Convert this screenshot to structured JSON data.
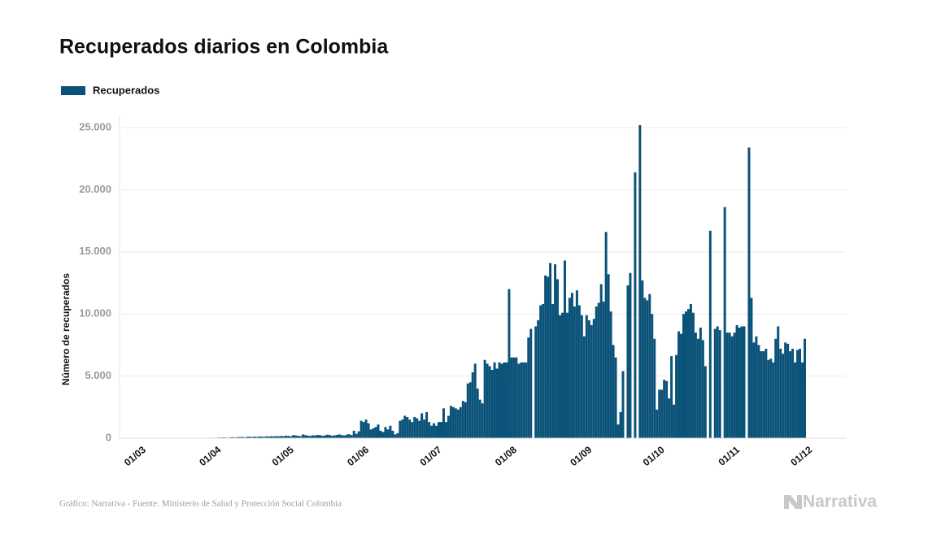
{
  "chart_data": {
    "type": "bar",
    "title": "Recuperados diarios en Colombia",
    "y_label": "Número de recuperados",
    "source": "Gráfico: Narrativa - Fuente: Ministerio de Salud y Protección Social Colombia",
    "brand": "Narrativa",
    "legend_position": "top-left",
    "grid": true,
    "ylim": [
      0,
      26000
    ],
    "yticks": [
      0,
      {
        "value": 5000,
        "label": "5.000"
      },
      {
        "value": 10000,
        "label": "10.000"
      },
      {
        "value": 15000,
        "label": "15.000"
      },
      {
        "value": 20000,
        "label": "20.000"
      },
      {
        "value": 25000,
        "label": "25.000"
      }
    ],
    "categories": [
      "01/03",
      null,
      null,
      null,
      null,
      null,
      null,
      null,
      null,
      null,
      null,
      null,
      null,
      null,
      null,
      null,
      null,
      null,
      null,
      null,
      null,
      null,
      null,
      null,
      null,
      null,
      null,
      null,
      null,
      null,
      null,
      "01/04",
      null,
      null,
      null,
      null,
      null,
      null,
      null,
      null,
      null,
      null,
      null,
      null,
      null,
      null,
      null,
      null,
      null,
      null,
      null,
      null,
      null,
      null,
      null,
      null,
      null,
      null,
      null,
      null,
      null,
      "01/05",
      null,
      null,
      null,
      null,
      null,
      null,
      null,
      null,
      null,
      null,
      null,
      null,
      null,
      null,
      null,
      null,
      null,
      null,
      null,
      null,
      null,
      null,
      null,
      null,
      null,
      null,
      null,
      null,
      null,
      null,
      "01/06",
      null,
      null,
      null,
      null,
      null,
      null,
      null,
      null,
      null,
      null,
      null,
      null,
      null,
      null,
      null,
      null,
      null,
      null,
      null,
      null,
      null,
      null,
      null,
      null,
      null,
      null,
      null,
      null,
      null,
      "01/07",
      null,
      null,
      null,
      null,
      null,
      null,
      null,
      null,
      null,
      null,
      null,
      null,
      null,
      null,
      null,
      null,
      null,
      null,
      null,
      null,
      null,
      null,
      null,
      null,
      null,
      null,
      null,
      null,
      null,
      null,
      "01/08",
      null,
      null,
      null,
      null,
      null,
      null,
      null,
      null,
      null,
      null,
      null,
      null,
      null,
      null,
      null,
      null,
      null,
      null,
      null,
      null,
      null,
      null,
      null,
      null,
      null,
      null,
      null,
      null,
      null,
      null,
      "01/09",
      null,
      null,
      null,
      null,
      null,
      null,
      null,
      null,
      null,
      null,
      null,
      null,
      null,
      null,
      null,
      null,
      null,
      null,
      null,
      null,
      null,
      null,
      null,
      null,
      null,
      null,
      null,
      null,
      null,
      "01/10",
      null,
      null,
      null,
      null,
      null,
      null,
      null,
      null,
      null,
      null,
      null,
      null,
      null,
      null,
      null,
      null,
      null,
      null,
      null,
      null,
      null,
      null,
      null,
      null,
      null,
      null,
      null,
      null,
      null,
      null,
      "01/11",
      null,
      null,
      null,
      null,
      null,
      null,
      null,
      null,
      null,
      null,
      null,
      null,
      null,
      null,
      null,
      null,
      null,
      null,
      null,
      null,
      null,
      null,
      null,
      null,
      null,
      null,
      null,
      null,
      null,
      "01/12"
    ],
    "series": [
      {
        "name": "Recuperados",
        "color": "#0a5278",
        "values": [
          0,
          0,
          0,
          0,
          0,
          1,
          0,
          1,
          0,
          2,
          0,
          1,
          1,
          2,
          3,
          2,
          4,
          5,
          3,
          8,
          6,
          10,
          12,
          8,
          15,
          10,
          20,
          18,
          25,
          30,
          28,
          40,
          35,
          50,
          45,
          60,
          55,
          30,
          70,
          80,
          60,
          90,
          85,
          100,
          70,
          110,
          120,
          90,
          130,
          100,
          140,
          120,
          110,
          150,
          130,
          160,
          140,
          170,
          150,
          180,
          160,
          200,
          180,
          150,
          250,
          220,
          190,
          160,
          300,
          250,
          200,
          180,
          230,
          210,
          260,
          240,
          190,
          220,
          280,
          250,
          200,
          230,
          260,
          300,
          250,
          220,
          280,
          320,
          250,
          600,
          350,
          550,
          1400,
          1300,
          1500,
          1200,
          700,
          800,
          900,
          1100,
          600,
          500,
          900,
          700,
          1000,
          600,
          300,
          400,
          1400,
          1500,
          1800,
          1700,
          1500,
          1300,
          1700,
          1600,
          1400,
          2000,
          1500,
          2100,
          1300,
          1000,
          1200,
          1000,
          1300,
          1300,
          2400,
          1300,
          1800,
          2600,
          2500,
          2400,
          2300,
          2500,
          3000,
          2900,
          4400,
          4500,
          5300,
          6000,
          4000,
          3100,
          2800,
          6300,
          6000,
          5800,
          5500,
          6100,
          5600,
          6100,
          6000,
          6100,
          6100,
          12000,
          6500,
          6500,
          6500,
          6000,
          6100,
          6100,
          6100,
          8100,
          8800,
          0,
          9000,
          9500,
          10700,
          10800,
          13100,
          13000,
          14100,
          10800,
          14000,
          12800,
          9900,
          10100,
          14300,
          10100,
          11300,
          11700,
          10600,
          11900,
          10700,
          9900,
          8200,
          9900,
          9500,
          9100,
          9600,
          10600,
          10900,
          12400,
          11000,
          16600,
          13200,
          10200,
          7500,
          6500,
          1100,
          2100,
          5400,
          0,
          12300,
          13300,
          0,
          21400,
          0,
          25200,
          12700,
          11300,
          11100,
          11600,
          10000,
          8000,
          2300,
          3900,
          3900,
          4700,
          4600,
          3200,
          6600,
          2700,
          6700,
          8600,
          8400,
          10000,
          10200,
          10400,
          10800,
          10100,
          8500,
          8000,
          8900,
          7900,
          5800,
          0,
          16700,
          0,
          8800,
          9000,
          8700,
          0,
          18600,
          8500,
          8500,
          8200,
          8500,
          9100,
          8900,
          9000,
          9000,
          0,
          23400,
          11300,
          7700,
          8200,
          7500,
          7000,
          7000,
          7200,
          6300,
          6400,
          6100,
          8000,
          9000,
          7200,
          6800,
          7700,
          7600,
          7000,
          7200,
          6100,
          7100,
          7200,
          6100,
          8000
        ]
      }
    ]
  }
}
